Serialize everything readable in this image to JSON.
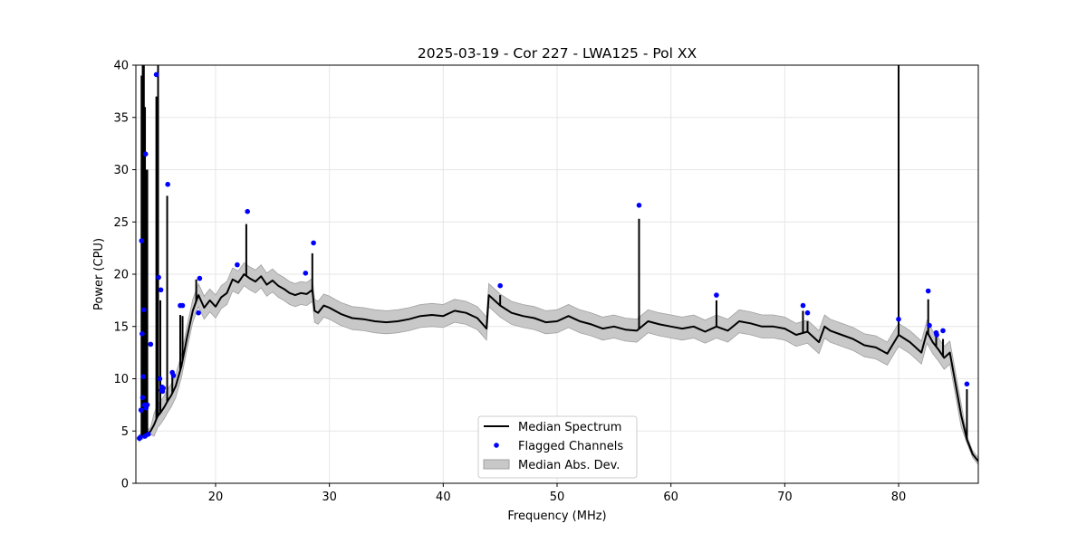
{
  "chart_data": {
    "type": "line",
    "title": "2025-03-19 - Cor 227 - LWA125 - Pol XX",
    "xlabel": "Frequency (MHz)",
    "ylabel": "Power (CPU)",
    "xlim": [
      13.0,
      87.0
    ],
    "ylim": [
      0,
      40
    ],
    "xticks": [
      20,
      30,
      40,
      50,
      60,
      70,
      80
    ],
    "yticks": [
      0,
      5,
      10,
      15,
      20,
      25,
      30,
      35,
      40
    ],
    "grid": true,
    "legend_position": "lower-center",
    "colors": {
      "median": "#000000",
      "flagged": "#0000ff",
      "mad_fill": "#c8c8c8",
      "mad_edge": "#a0a0a0"
    },
    "series": [
      {
        "name": "Median Spectrum",
        "kind": "line",
        "x": [
          13.3,
          13.5,
          13.7,
          13.9,
          14.1,
          14.3,
          14.6,
          14.9,
          15.2,
          15.5,
          15.8,
          16.1,
          16.5,
          17.0,
          17.5,
          18.0,
          18.5,
          19.0,
          19.5,
          20.0,
          20.5,
          21.0,
          21.5,
          22.0,
          22.5,
          23.0,
          23.5,
          24.0,
          24.5,
          25.0,
          25.5,
          26.0,
          26.5,
          27.0,
          27.5,
          28.0,
          28.5,
          28.7,
          29.0,
          29.5,
          30.0,
          31.0,
          32.0,
          33.0,
          34.0,
          35.0,
          36.0,
          37.0,
          38.0,
          39.0,
          40.0,
          41.0,
          42.0,
          43.0,
          43.8,
          44.0,
          45.0,
          46.0,
          47.0,
          48.0,
          49.0,
          50.0,
          51.0,
          52.0,
          53.0,
          54.0,
          55.0,
          56.0,
          57.0,
          58.0,
          59.0,
          60.0,
          61.0,
          62.0,
          63.0,
          64.0,
          65.0,
          66.0,
          67.0,
          68.0,
          69.0,
          70.0,
          71.0,
          72.0,
          73.0,
          73.5,
          74.0,
          75.0,
          76.0,
          77.0,
          78.0,
          79.0,
          80.0,
          81.0,
          82.0,
          82.5,
          83.0,
          83.5,
          84.0,
          84.5,
          85.0,
          85.5,
          86.0,
          86.5,
          87.0
        ],
        "y": [
          4.3,
          4.5,
          4.6,
          4.7,
          4.8,
          5.0,
          5.6,
          6.4,
          6.8,
          7.3,
          7.9,
          8.4,
          9.3,
          11.2,
          14.0,
          16.5,
          18.0,
          16.8,
          17.5,
          16.9,
          17.8,
          18.2,
          19.5,
          19.2,
          20.0,
          19.6,
          19.3,
          19.8,
          19.0,
          19.4,
          18.9,
          18.6,
          18.2,
          18.0,
          18.2,
          18.1,
          18.5,
          16.5,
          16.3,
          17.0,
          16.8,
          16.2,
          15.8,
          15.7,
          15.5,
          15.4,
          15.5,
          15.7,
          16.0,
          16.1,
          16.0,
          16.5,
          16.3,
          15.8,
          14.8,
          18.0,
          17.0,
          16.3,
          16.0,
          15.8,
          15.4,
          15.5,
          16.0,
          15.5,
          15.2,
          14.8,
          15.0,
          14.7,
          14.6,
          15.5,
          15.2,
          15.0,
          14.8,
          15.0,
          14.5,
          15.0,
          14.6,
          15.5,
          15.3,
          15.0,
          15.0,
          14.8,
          14.2,
          14.5,
          13.5,
          15.0,
          14.6,
          14.2,
          13.8,
          13.2,
          13.0,
          12.4,
          14.2,
          13.5,
          12.5,
          14.5,
          13.5,
          12.8,
          12.0,
          12.5,
          9.5,
          6.5,
          4.2,
          2.8,
          2.1
        ],
        "spikes": [
          [
            13.5,
            39.0
          ],
          [
            13.6,
            40.0
          ],
          [
            13.7,
            40.0
          ],
          [
            13.8,
            36.0
          ],
          [
            13.9,
            30.0
          ],
          [
            14.0,
            30.0
          ],
          [
            14.8,
            37.0
          ],
          [
            14.95,
            40.0
          ],
          [
            15.15,
            17.5
          ],
          [
            15.75,
            27.5
          ],
          [
            16.2,
            10.5
          ],
          [
            16.9,
            16.1
          ],
          [
            17.1,
            16.0
          ],
          [
            18.3,
            19.5
          ],
          [
            22.7,
            24.8
          ],
          [
            28.5,
            22.0
          ],
          [
            45.0,
            18.0
          ],
          [
            57.2,
            25.3
          ],
          [
            64.0,
            17.5
          ],
          [
            71.6,
            16.5
          ],
          [
            72.0,
            15.5
          ],
          [
            80.0,
            40.0
          ],
          [
            82.6,
            17.6
          ],
          [
            83.3,
            14.0
          ],
          [
            83.9,
            13.8
          ],
          [
            86.0,
            9.0
          ]
        ],
        "mad": 1.1
      },
      {
        "name": "Flagged Channels",
        "kind": "scatter",
        "x": [
          13.3,
          13.4,
          13.45,
          13.5,
          13.55,
          13.6,
          13.65,
          13.7,
          13.75,
          13.8,
          13.85,
          13.9,
          14.0,
          14.1,
          14.3,
          14.8,
          15.0,
          15.1,
          15.2,
          15.25,
          15.3,
          15.35,
          15.4,
          15.8,
          16.2,
          16.3,
          16.9,
          17.1,
          18.5,
          18.6,
          21.9,
          22.8,
          27.9,
          28.6,
          45.0,
          57.2,
          64.0,
          71.6,
          72.0,
          80.0,
          82.6,
          82.7,
          83.3,
          83.35,
          83.9,
          86.0
        ],
        "y": [
          4.3,
          4.4,
          7.0,
          23.2,
          14.3,
          8.2,
          10.2,
          16.6,
          7.5,
          4.5,
          31.5,
          7.2,
          7.5,
          4.7,
          13.3,
          39.1,
          19.7,
          10.0,
          18.5,
          8.9,
          9.2,
          8.8,
          9.1,
          28.6,
          10.6,
          10.3,
          17.0,
          17.0,
          16.3,
          19.6,
          20.9,
          26.0,
          20.1,
          23.0,
          18.9,
          26.6,
          18.0,
          17.0,
          16.3,
          15.7,
          18.4,
          15.1,
          14.4,
          14.2,
          14.6,
          9.5
        ]
      },
      {
        "name": "Median Abs. Dev.",
        "kind": "fill"
      }
    ]
  }
}
